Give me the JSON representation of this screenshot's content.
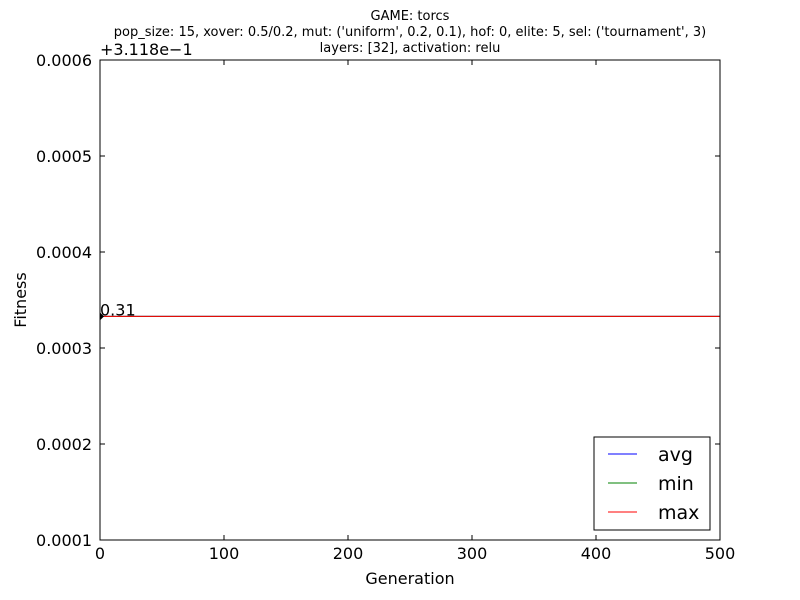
{
  "chart_data": {
    "type": "line",
    "title_lines": [
      "GAME: torcs",
      "pop_size: 15, xover: 0.5/0.2, mut: ('uniform', 0.2, 0.1), hof: 0, elite: 5, sel: ('tournament', 3)",
      "layers: [32], activation: relu"
    ],
    "xlabel": "Generation",
    "ylabel": "Fitness",
    "offset_label": "+3.118e−1",
    "xlim": [
      0,
      500
    ],
    "ylim": [
      0.0001,
      0.0006
    ],
    "x_ticks": [
      0,
      100,
      200,
      300,
      400,
      500
    ],
    "x_tick_labels": [
      "0",
      "100",
      "200",
      "300",
      "400",
      "500"
    ],
    "y_ticks": [
      0.0001,
      0.0002,
      0.0003,
      0.0004,
      0.0005,
      0.0006
    ],
    "y_tick_labels": [
      "0.0001",
      "0.0002",
      "0.0003",
      "0.0004",
      "0.0005",
      "0.0006"
    ],
    "grid": false,
    "legend_placement": "lower-right",
    "x": [
      0,
      500
    ],
    "series": [
      {
        "name": "avg",
        "color": "#0000ff",
        "values": [
          0.000333,
          0.000333
        ]
      },
      {
        "name": "min",
        "color": "#008000",
        "values": [
          0.000333,
          0.000333
        ]
      },
      {
        "name": "max",
        "color": "#ff0000",
        "values": [
          0.000333,
          0.000333
        ]
      }
    ],
    "annotation": {
      "text": "0.31",
      "x": 0,
      "y": 0.000333
    }
  }
}
